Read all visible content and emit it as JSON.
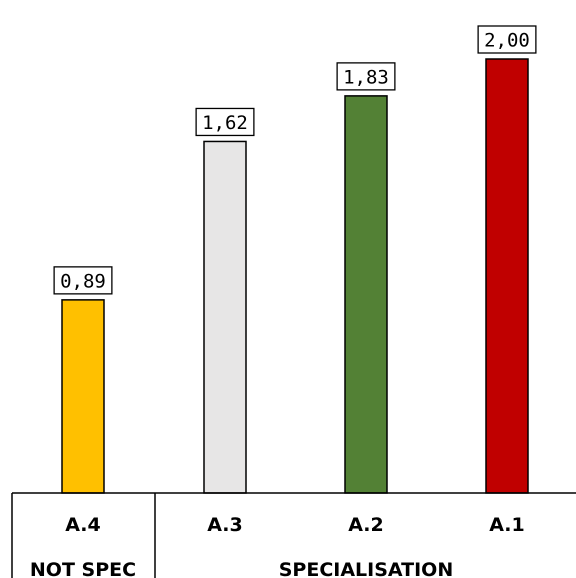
{
  "chart_data": {
    "type": "bar",
    "title": "",
    "xlabel": "",
    "ylabel": "",
    "categories": [
      "A.4",
      "A.3",
      "A.2",
      "A.1"
    ],
    "values": [
      0.89,
      1.62,
      1.83,
      2.0
    ],
    "value_labels": [
      "0,89",
      "1,62",
      "1,83",
      "2,00"
    ],
    "colors": [
      "#FFC000",
      "#E7E6E6",
      "#538135",
      "#C00000"
    ],
    "ylim": [
      0,
      2.0
    ],
    "grid": false,
    "groups": [
      {
        "label": "NOT SPEC",
        "categories": [
          "A.4"
        ]
      },
      {
        "label": "SPECIALISATION",
        "categories": [
          "A.3",
          "A.2",
          "A.1"
        ]
      }
    ]
  }
}
